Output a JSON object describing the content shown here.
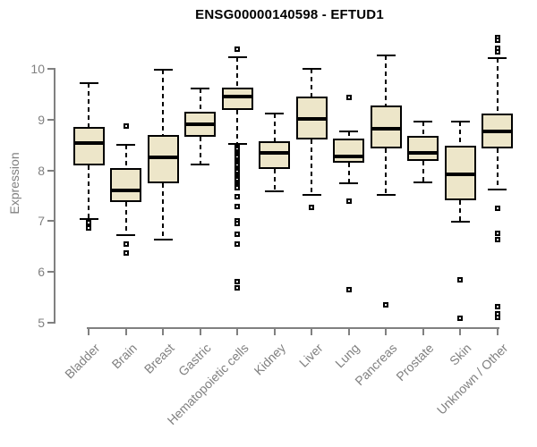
{
  "title": "ENSG00000140598 - EFTUD1",
  "y_axis": {
    "label": "Expression",
    "ticks": [
      10,
      9,
      8,
      7,
      6,
      5
    ]
  },
  "colors": {
    "box_fill": "#EDE6C9",
    "box_border": "#000000",
    "median": "#000000",
    "whisker": "#000000",
    "axis": "#808080",
    "tick_label": "#808080",
    "title": "#000000",
    "background": "#FFFFFF"
  },
  "chart_data": {
    "type": "boxplot",
    "title": "ENSG00000140598 - EFTUD1",
    "xlabel": "",
    "ylabel": "Expression",
    "ylim": [
      5,
      10.7
    ],
    "yticks": [
      5,
      6,
      7,
      8,
      9,
      10
    ],
    "grid": false,
    "legend": "none",
    "categories": [
      "Bladder",
      "Brain",
      "Breast",
      "Gastric",
      "Hematopoietic cells",
      "Kidney",
      "Liver",
      "Lung",
      "Pancreas",
      "Prostate",
      "Skin",
      "Unknown / Other"
    ],
    "boxes": [
      {
        "label": "Bladder",
        "whisker_low": 7.04,
        "q1": 8.1,
        "median": 8.53,
        "q3": 8.86,
        "whisker_high": 9.71,
        "outliers": [
          6.97,
          6.87
        ]
      },
      {
        "label": "Brain",
        "whisker_low": 6.72,
        "q1": 7.38,
        "median": 7.61,
        "q3": 8.04,
        "whisker_high": 8.51,
        "outliers": [
          8.88,
          6.55,
          6.38
        ]
      },
      {
        "label": "Breast",
        "whisker_low": 6.63,
        "q1": 7.74,
        "median": 8.25,
        "q3": 8.7,
        "whisker_high": 9.99,
        "outliers": []
      },
      {
        "label": "Gastric",
        "whisker_low": 8.12,
        "q1": 8.67,
        "median": 8.9,
        "q3": 9.16,
        "whisker_high": 9.61,
        "outliers": []
      },
      {
        "label": "Hematopoietic cells",
        "whisker_low": 8.52,
        "q1": 9.19,
        "median": 9.46,
        "q3": 9.63,
        "whisker_high": 10.23,
        "outliers": [
          10.38,
          8.45,
          8.41,
          8.37,
          8.33,
          8.29,
          8.25,
          8.21,
          8.17,
          8.13,
          8.09,
          8.05,
          8.01,
          7.97,
          7.93,
          7.89,
          7.85,
          7.81,
          7.77,
          7.73,
          7.69,
          7.65,
          7.48,
          7.29,
          7.01,
          6.95,
          6.75,
          6.55,
          5.81,
          5.69
        ]
      },
      {
        "label": "Kidney",
        "whisker_low": 7.59,
        "q1": 8.02,
        "median": 8.35,
        "q3": 8.58,
        "whisker_high": 9.12,
        "outliers": []
      },
      {
        "label": "Liver",
        "whisker_low": 7.51,
        "q1": 8.61,
        "median": 9.01,
        "q3": 9.45,
        "whisker_high": 10.0,
        "outliers": [
          7.27
        ]
      },
      {
        "label": "Lung",
        "whisker_low": 7.74,
        "q1": 8.16,
        "median": 8.28,
        "q3": 8.63,
        "whisker_high": 8.76,
        "outliers": [
          9.44,
          7.39,
          5.65
        ]
      },
      {
        "label": "Pancreas",
        "whisker_low": 7.51,
        "q1": 8.43,
        "median": 8.82,
        "q3": 9.27,
        "whisker_high": 10.26,
        "outliers": [
          5.35
        ]
      },
      {
        "label": "Prostate",
        "whisker_low": 7.77,
        "q1": 8.19,
        "median": 8.34,
        "q3": 8.68,
        "whisker_high": 8.97,
        "outliers": []
      },
      {
        "label": "Skin",
        "whisker_low": 6.99,
        "q1": 7.42,
        "median": 7.93,
        "q3": 8.48,
        "whisker_high": 8.96,
        "outliers": [
          5.85,
          5.09
        ]
      },
      {
        "label": "Unknown / Other",
        "whisker_low": 7.63,
        "q1": 8.43,
        "median": 8.76,
        "q3": 9.12,
        "whisker_high": 10.21,
        "outliers": [
          10.62,
          10.57,
          10.4,
          10.33,
          7.25,
          6.76,
          6.64,
          5.31,
          5.17,
          5.11
        ]
      }
    ]
  }
}
